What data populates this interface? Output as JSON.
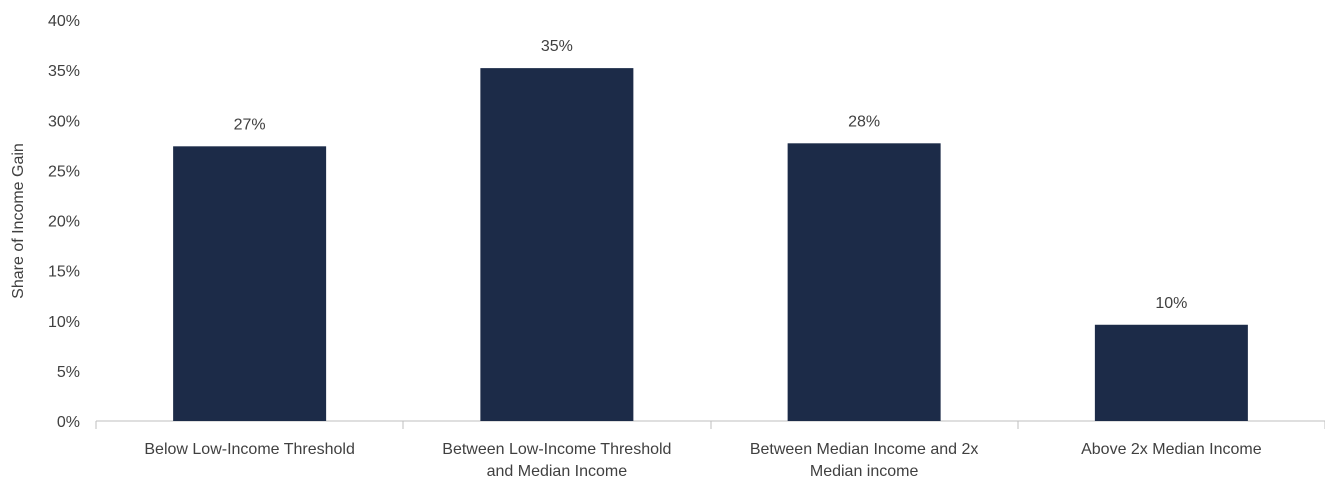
{
  "chart_data": {
    "type": "bar",
    "title": "",
    "xlabel": "",
    "ylabel": "Share of Income Gain",
    "ylim": [
      0,
      40
    ],
    "yticks": [
      0,
      5,
      10,
      15,
      20,
      25,
      30,
      35,
      40
    ],
    "ytick_labels": [
      "0%",
      "5%",
      "10%",
      "15%",
      "20%",
      "25%",
      "30%",
      "35%",
      "40%"
    ],
    "categories": [
      [
        "Below Low-Income Threshold"
      ],
      [
        "Between Low-Income Threshold",
        "and Median Income"
      ],
      [
        "Between Median Income and 2x",
        "Median income"
      ],
      [
        "Above 2x Median Income"
      ]
    ],
    "values": [
      27.4,
      35.2,
      27.7,
      9.6
    ],
    "data_labels": [
      "27%",
      "35%",
      "28%",
      "10%"
    ],
    "bar_color": "#1c2b48",
    "grid": false,
    "legend": "none"
  }
}
